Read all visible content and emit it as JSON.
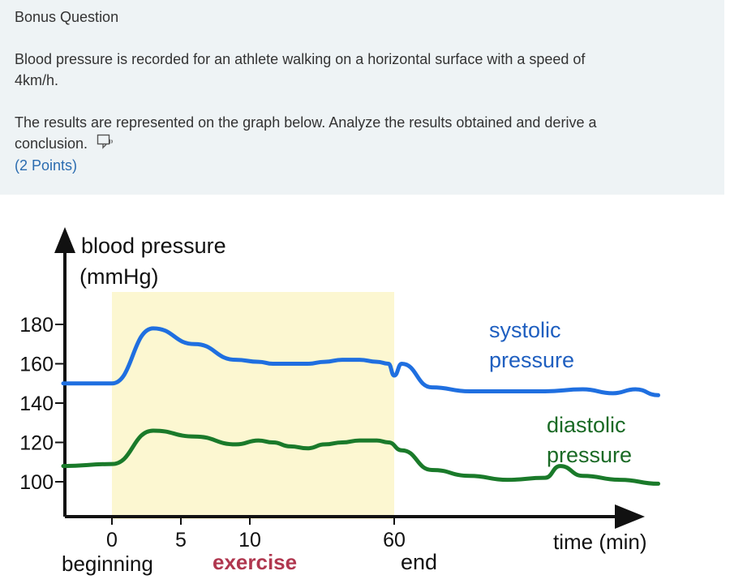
{
  "question": {
    "title": "Bonus Question",
    "prompt_1": "Blood pressure is recorded for an athlete walking on a horizontal surface with a speed of",
    "prompt_1b": "4km/h.",
    "prompt_2": "The results are represented on the graph below. Analyze the results obtained and derive a",
    "prompt_2b": "conclusion.",
    "points": "(2 Points)",
    "tts_icon": "immersive-reader-icon"
  },
  "chart_data": {
    "type": "line",
    "ylabel_1": "blood pressure",
    "ylabel_2": "(mmHg)",
    "xlabel": "time (min)",
    "y_ticks": [
      "180",
      "160",
      "140",
      "120",
      "100"
    ],
    "x_ticks": [
      "0",
      "5",
      "10",
      "60"
    ],
    "x_annotations": {
      "beginning": "beginning",
      "exercise": "exercise",
      "end": "end"
    },
    "highlight": "exercise period (0 to 60 min)",
    "series": [
      {
        "name": "systolic pressure",
        "label_1": "systolic",
        "label_2": "pressure",
        "color": "#1f6fe0",
        "points": [
          [
            -12,
            150
          ],
          [
            0,
            150
          ],
          [
            3,
            178
          ],
          [
            6,
            170
          ],
          [
            9,
            162
          ],
          [
            13,
            161
          ],
          [
            18,
            160
          ],
          [
            24,
            160
          ],
          [
            30,
            160
          ],
          [
            36,
            161
          ],
          [
            42,
            162
          ],
          [
            48,
            162
          ],
          [
            54,
            161
          ],
          [
            58,
            160
          ],
          [
            60,
            154
          ],
          [
            62,
            160
          ],
          [
            70,
            148
          ],
          [
            80,
            146
          ],
          [
            90,
            146
          ],
          [
            100,
            146
          ],
          [
            110,
            147
          ],
          [
            118,
            145
          ],
          [
            124,
            147
          ],
          [
            130,
            144
          ]
        ]
      },
      {
        "name": "diastolic pressure",
        "label_1": "diastolic",
        "label_2": "pressure",
        "color": "#1a7a2a",
        "points": [
          [
            -12,
            108
          ],
          [
            0,
            109
          ],
          [
            3,
            126
          ],
          [
            6,
            123
          ],
          [
            9,
            119
          ],
          [
            13,
            121
          ],
          [
            18,
            120
          ],
          [
            24,
            118
          ],
          [
            30,
            117
          ],
          [
            36,
            119
          ],
          [
            42,
            120
          ],
          [
            48,
            121
          ],
          [
            54,
            121
          ],
          [
            58,
            120
          ],
          [
            62,
            116
          ],
          [
            70,
            106
          ],
          [
            80,
            103
          ],
          [
            90,
            101
          ],
          [
            100,
            102
          ],
          [
            104,
            108
          ],
          [
            110,
            103
          ],
          [
            120,
            101
          ],
          [
            130,
            99
          ]
        ]
      }
    ]
  }
}
